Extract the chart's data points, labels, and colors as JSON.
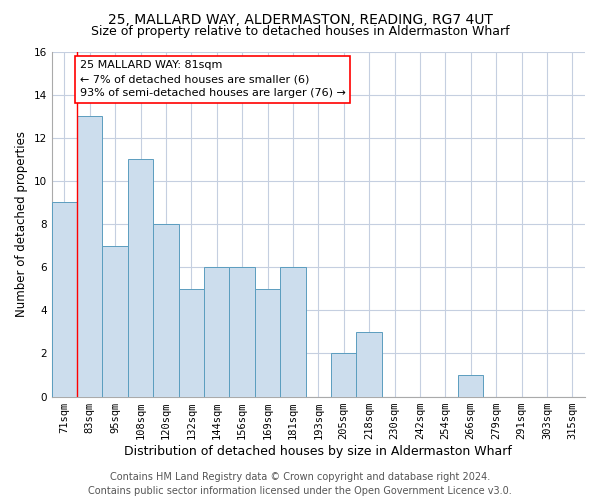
{
  "title": "25, MALLARD WAY, ALDERMASTON, READING, RG7 4UT",
  "subtitle": "Size of property relative to detached houses in Aldermaston Wharf",
  "xlabel": "Distribution of detached houses by size in Aldermaston Wharf",
  "ylabel": "Number of detached properties",
  "categories": [
    "71sqm",
    "83sqm",
    "95sqm",
    "108sqm",
    "120sqm",
    "132sqm",
    "144sqm",
    "156sqm",
    "169sqm",
    "181sqm",
    "193sqm",
    "205sqm",
    "218sqm",
    "230sqm",
    "242sqm",
    "254sqm",
    "266sqm",
    "279sqm",
    "291sqm",
    "303sqm",
    "315sqm"
  ],
  "values": [
    9,
    13,
    7,
    11,
    8,
    5,
    6,
    6,
    5,
    6,
    0,
    2,
    3,
    0,
    0,
    0,
    1,
    0,
    0,
    0,
    0
  ],
  "bar_color": "#ccdded",
  "bar_edge_color": "#5b9dbf",
  "ylim": [
    0,
    16
  ],
  "yticks": [
    0,
    2,
    4,
    6,
    8,
    10,
    12,
    14,
    16
  ],
  "annotation_line1": "25 MALLARD WAY: 81sqm",
  "annotation_line2": "← 7% of detached houses are smaller (6)",
  "annotation_line3": "93% of semi-detached houses are larger (76) →",
  "footer1": "Contains HM Land Registry data © Crown copyright and database right 2024.",
  "footer2": "Contains public sector information licensed under the Open Government Licence v3.0.",
  "bg_color": "#ffffff",
  "grid_color": "#c5cfe0",
  "title_fontsize": 10,
  "subtitle_fontsize": 9,
  "xlabel_fontsize": 9,
  "ylabel_fontsize": 8.5,
  "tick_fontsize": 7.5,
  "annot_fontsize": 8,
  "footer_fontsize": 7
}
